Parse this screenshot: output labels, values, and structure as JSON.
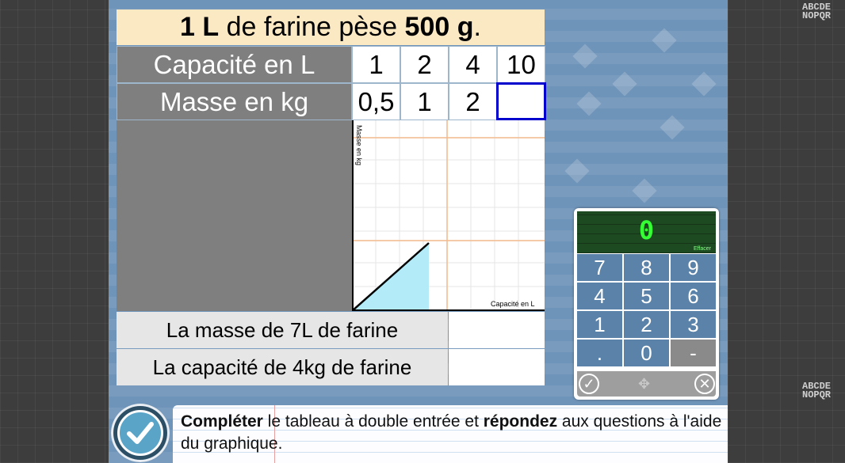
{
  "title": {
    "part1_bold": "1 L",
    "part2": " de farine pèse ",
    "part3_bold": "500 g",
    "part4": "."
  },
  "side_text": {
    "line1": "ABCDE",
    "line2": "NOPQR"
  },
  "table": {
    "row1_header": "Capacité en L",
    "row1_values": [
      "1",
      "2",
      "4",
      "10"
    ],
    "row2_header": "Masse en kg",
    "row2_values": [
      "0,5",
      "1",
      "2",
      ""
    ]
  },
  "graph": {
    "y_axis_label": "Masse en kg",
    "x_axis_label": "Capacité en L"
  },
  "questions": [
    {
      "label": "La masse de 7L de farine",
      "answer": ""
    },
    {
      "label": "La capacité de 4kg de farine",
      "answer": ""
    }
  ],
  "keypad": {
    "display_value": "0",
    "clear_label": "Effacer",
    "keys": [
      "7",
      "8",
      "9",
      "4",
      "5",
      "6",
      "1",
      "2",
      "3",
      ".",
      "0",
      "-"
    ]
  },
  "instruction": {
    "bold1": "Compléter",
    "text1": " le tableau à double entrée et ",
    "bold2": "répondez",
    "text2": " aux questions à l'aide du graphique."
  },
  "colors": {
    "header_gray": "#7f7f7f",
    "title_bg": "#fbe9c4",
    "active_cell_border": "#0000cc",
    "key_blue": "#5b82a8",
    "display_green": "#33ff33",
    "graph_fill": "#b3ecf8"
  },
  "icons": {
    "validate": "check-circle-icon",
    "cancel": "close-circle-icon",
    "move": "move-arrows-icon",
    "submit": "checkmark-icon"
  }
}
